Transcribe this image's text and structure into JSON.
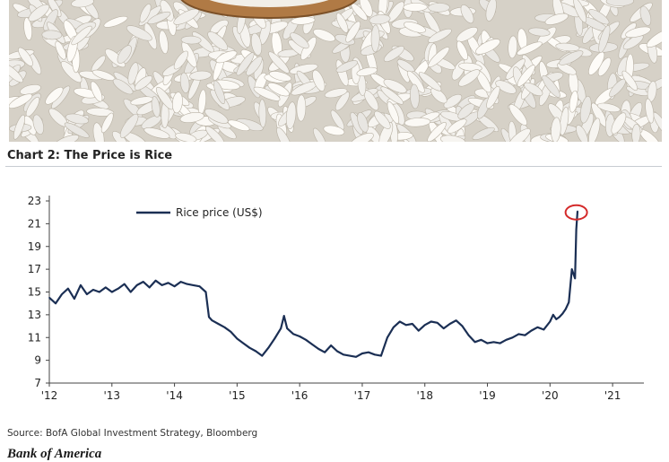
{
  "chart_data": {
    "type": "line",
    "title": "Chart 2: The Price is Rice",
    "source": "Source: BofA Global Investment Strategy, Bloomberg",
    "brand": "Bank of America",
    "xlabel": "",
    "ylabel": "",
    "xlim": [
      2012.0,
      2021.5
    ],
    "ylim": [
      7,
      23
    ],
    "yticks": [
      7,
      9,
      11,
      13,
      15,
      17,
      19,
      21,
      23
    ],
    "xticks": [
      {
        "label": "'12",
        "value": 2012
      },
      {
        "label": "'13",
        "value": 2013
      },
      {
        "label": "'14",
        "value": 2014
      },
      {
        "label": "'15",
        "value": 2015
      },
      {
        "label": "'16",
        "value": 2016
      },
      {
        "label": "'17",
        "value": 2017
      },
      {
        "label": "'18",
        "value": 2018
      },
      {
        "label": "'19",
        "value": 2019
      },
      {
        "label": "'20",
        "value": 2020
      },
      {
        "label": "'21",
        "value": 2021
      }
    ],
    "grid": false,
    "legend_position": "top-left",
    "highlight": {
      "x": 2020.42,
      "y": 22.0,
      "color": "#d42a2a"
    },
    "series": [
      {
        "name": "Rice price (US$)",
        "color": "#1b2f54",
        "x": [
          2012.0,
          2012.1,
          2012.2,
          2012.3,
          2012.4,
          2012.5,
          2012.6,
          2012.7,
          2012.8,
          2012.9,
          2013.0,
          2013.1,
          2013.2,
          2013.3,
          2013.4,
          2013.5,
          2013.6,
          2013.7,
          2013.8,
          2013.9,
          2014.0,
          2014.1,
          2014.2,
          2014.3,
          2014.4,
          2014.5,
          2014.55,
          2014.6,
          2014.7,
          2014.8,
          2014.9,
          2015.0,
          2015.1,
          2015.2,
          2015.3,
          2015.4,
          2015.5,
          2015.6,
          2015.7,
          2015.75,
          2015.8,
          2015.9,
          2016.0,
          2016.1,
          2016.2,
          2016.3,
          2016.4,
          2016.5,
          2016.6,
          2016.7,
          2016.8,
          2016.9,
          2017.0,
          2017.1,
          2017.2,
          2017.3,
          2017.4,
          2017.5,
          2017.6,
          2017.7,
          2017.8,
          2017.9,
          2018.0,
          2018.1,
          2018.2,
          2018.3,
          2018.4,
          2018.5,
          2018.6,
          2018.7,
          2018.8,
          2018.9,
          2019.0,
          2019.1,
          2019.2,
          2019.3,
          2019.4,
          2019.5,
          2019.6,
          2019.7,
          2019.8,
          2019.9,
          2020.0,
          2020.05,
          2020.1,
          2020.15,
          2020.2,
          2020.25,
          2020.3,
          2020.35,
          2020.4,
          2020.42,
          2020.44
        ],
        "values": [
          14.5,
          14.0,
          14.8,
          15.3,
          14.4,
          15.6,
          14.8,
          15.2,
          15.0,
          15.4,
          15.0,
          15.3,
          15.7,
          15.0,
          15.6,
          15.9,
          15.4,
          16.0,
          15.6,
          15.8,
          15.5,
          15.9,
          15.7,
          15.6,
          15.5,
          15.0,
          12.8,
          12.5,
          12.2,
          11.9,
          11.5,
          10.9,
          10.5,
          10.1,
          9.8,
          9.4,
          10.1,
          10.9,
          11.8,
          12.9,
          11.8,
          11.3,
          11.1,
          10.8,
          10.4,
          10.0,
          9.7,
          10.3,
          9.8,
          9.5,
          9.4,
          9.3,
          9.6,
          9.7,
          9.5,
          9.4,
          11.0,
          11.9,
          12.4,
          12.1,
          12.2,
          11.6,
          12.1,
          12.4,
          12.3,
          11.8,
          12.2,
          12.5,
          12.0,
          11.2,
          10.6,
          10.8,
          10.5,
          10.6,
          10.5,
          10.8,
          11.0,
          11.3,
          11.2,
          11.6,
          11.9,
          11.7,
          12.4,
          13.0,
          12.6,
          12.8,
          13.1,
          13.5,
          14.1,
          17.0,
          16.2,
          20.5,
          22.1
        ]
      }
    ]
  }
}
